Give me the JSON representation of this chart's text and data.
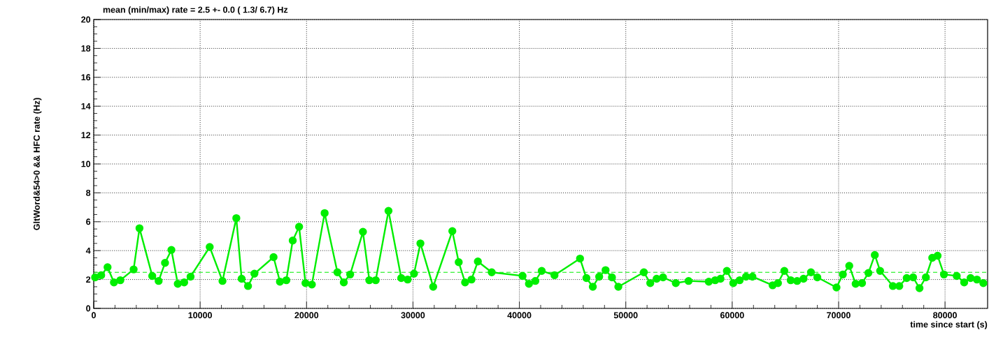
{
  "chart_data": {
    "type": "line",
    "title": "mean (min/max) rate =    2.5 +-    0.0 (   1.3/   6.7) Hz",
    "xlabel": "time since start (s)",
    "ylabel": "GltWord&54>0 && HFC rate (Hz)",
    "xlim": [
      0,
      84000
    ],
    "ylim": [
      0,
      20
    ],
    "xticks": [
      0,
      10000,
      20000,
      30000,
      40000,
      50000,
      60000,
      70000,
      80000
    ],
    "yticks": [
      0,
      2,
      4,
      6,
      8,
      10,
      12,
      14,
      16,
      18,
      20
    ],
    "grid": true,
    "marker": "circle",
    "line_style": "solid",
    "ref_lines": [
      {
        "axis": "y",
        "value": 2.5,
        "color": "#00ee00",
        "line_style": "dashed"
      }
    ],
    "series": [
      {
        "color": "#00ee00",
        "x": [
          130,
          700,
          1300,
          1900,
          2500,
          3750,
          4300,
          5500,
          6100,
          6700,
          7300,
          7900,
          8500,
          9100,
          10900,
          12100,
          13400,
          13900,
          14500,
          15100,
          16900,
          17500,
          18100,
          18700,
          19300,
          19900,
          20500,
          21700,
          22900,
          23500,
          24100,
          25300,
          25900,
          26500,
          27700,
          28900,
          29500,
          30100,
          30700,
          31900,
          33700,
          34300,
          34900,
          35500,
          36100,
          37400,
          40300,
          40900,
          41500,
          42100,
          43300,
          45700,
          46300,
          46900,
          47500,
          48100,
          48700,
          49300,
          51700,
          52300,
          52900,
          53500,
          54700,
          55900,
          57800,
          58400,
          58900,
          59500,
          60100,
          60700,
          61300,
          61900,
          63800,
          64300,
          64900,
          65500,
          66100,
          66700,
          67400,
          68000,
          69800,
          70400,
          71000,
          71600,
          72200,
          72800,
          73400,
          73900,
          75100,
          75700,
          76400,
          77000,
          77600,
          78200,
          78800,
          79300,
          79900,
          81100,
          81800,
          82400,
          83000,
          83600
        ],
        "values": [
          2.15,
          2.3,
          2.85,
          1.8,
          1.95,
          2.7,
          5.55,
          2.25,
          1.9,
          3.15,
          4.05,
          1.7,
          1.8,
          2.2,
          4.25,
          1.9,
          6.25,
          2.05,
          1.55,
          2.4,
          3.55,
          1.85,
          1.95,
          4.7,
          5.65,
          1.75,
          1.65,
          6.6,
          2.5,
          1.8,
          2.35,
          5.3,
          1.95,
          1.95,
          6.75,
          2.1,
          2.0,
          2.4,
          4.5,
          1.5,
          5.35,
          3.2,
          1.8,
          2.0,
          3.25,
          2.5,
          2.25,
          1.7,
          1.9,
          2.6,
          2.3,
          3.45,
          2.1,
          1.5,
          2.2,
          2.65,
          2.15,
          1.5,
          2.5,
          1.75,
          2.05,
          2.15,
          1.75,
          1.9,
          1.85,
          1.95,
          2.05,
          2.6,
          1.75,
          1.95,
          2.2,
          2.2,
          1.6,
          1.75,
          2.6,
          1.95,
          1.9,
          2.05,
          2.5,
          2.15,
          1.45,
          2.35,
          2.95,
          1.7,
          1.75,
          2.45,
          3.7,
          2.6,
          1.55,
          1.55,
          2.1,
          2.15,
          1.4,
          2.15,
          3.5,
          3.65,
          2.35,
          2.25,
          1.8,
          2.1,
          2.0,
          1.75
        ]
      }
    ]
  }
}
